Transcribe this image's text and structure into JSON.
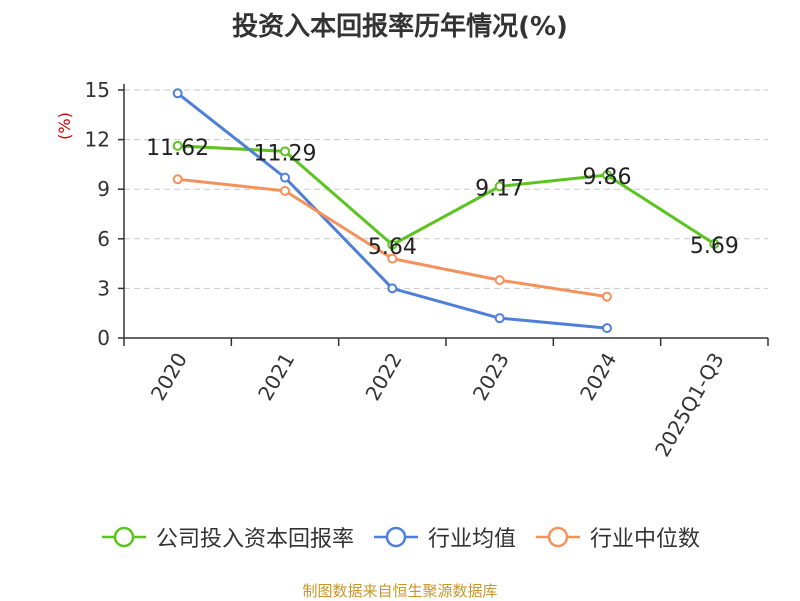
{
  "chart_data": {
    "type": "line",
    "title": "投资入本回报率历年情况(%)",
    "ylabel": "(%)",
    "xlabel": "",
    "ylim": [
      0,
      15
    ],
    "yticks": [
      "0",
      "3",
      "6",
      "9",
      "12",
      "15"
    ],
    "categories": [
      "2020",
      "2021",
      "2022",
      "2023",
      "2024",
      "2025Q1-Q3"
    ],
    "series": [
      {
        "name": "公司投入资本回报率",
        "color": "#5cc41f",
        "values": [
          11.62,
          11.29,
          5.64,
          9.17,
          9.86,
          5.69
        ],
        "labels": [
          "11.62",
          "11.29",
          "5.64",
          "9.17",
          "9.86",
          "5.69"
        ]
      },
      {
        "name": "行业均值",
        "color": "#4f7fd8",
        "values": [
          14.8,
          9.7,
          3.0,
          1.2,
          0.6,
          null
        ]
      },
      {
        "name": "行业中位数",
        "color": "#f5915a",
        "values": [
          9.6,
          8.9,
          4.8,
          3.5,
          2.5,
          null
        ]
      }
    ],
    "grid": true,
    "legend_position": "bottom"
  },
  "source": "制图数据来自恒生聚源数据库"
}
